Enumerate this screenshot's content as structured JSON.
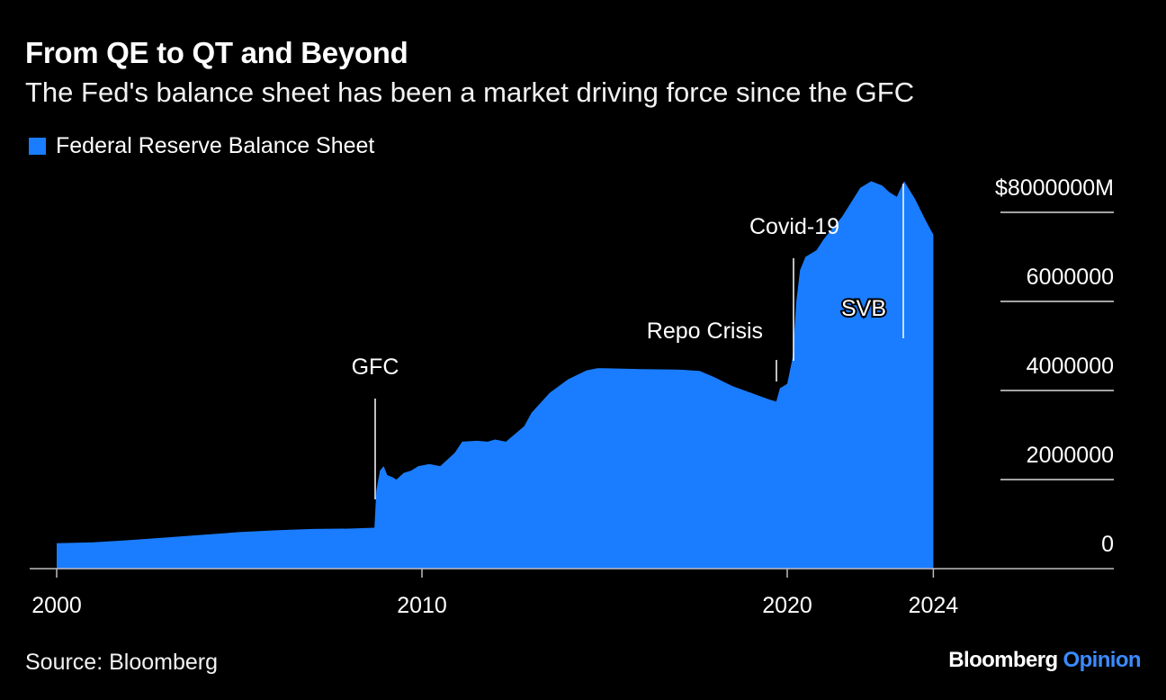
{
  "header": {
    "title": "From QE to QT and Beyond",
    "subtitle": "The Fed's balance sheet has been a market driving force since the GFC"
  },
  "footer": {
    "source": "Source: Bloomberg",
    "brand_main": "Bloomberg",
    "brand_accent": "Opinion"
  },
  "colors": {
    "series": "#1a7dff",
    "background": "#000000",
    "text": "#ffffff",
    "brand_accent": "#3b8bff"
  },
  "chart_data": {
    "type": "area",
    "title": "From QE to QT and Beyond",
    "subtitle": "The Fed's balance sheet has been a market driving force since the GFC",
    "xlabel": "",
    "ylabel": "",
    "xlim": [
      2000,
      2029
    ],
    "ylim": [
      0,
      8000000
    ],
    "x_ticks": [
      2000,
      2010,
      2020,
      2024
    ],
    "y_ticks": [
      {
        "value": 0,
        "label": "0"
      },
      {
        "value": 2000000,
        "label": "2000000"
      },
      {
        "value": 4000000,
        "label": "4000000"
      },
      {
        "value": 6000000,
        "label": "6000000"
      },
      {
        "value": 8000000,
        "label": "$8000000M"
      }
    ],
    "y_axis_side": "right",
    "grid": false,
    "legend": "top-left",
    "series": [
      {
        "name": "Federal Reserve Balance Sheet",
        "x": [
          2000.0,
          2001.0,
          2002.0,
          2003.0,
          2004.0,
          2005.0,
          2006.0,
          2007.0,
          2008.0,
          2008.7,
          2008.75,
          2008.85,
          2008.95,
          2009.05,
          2009.2,
          2009.3,
          2009.5,
          2009.7,
          2009.9,
          2010.2,
          2010.5,
          2010.9,
          2011.1,
          2011.5,
          2011.8,
          2012.0,
          2012.3,
          2012.8,
          2013.0,
          2013.5,
          2014.0,
          2014.5,
          2014.8,
          2015.0,
          2016.0,
          2017.0,
          2017.6,
          2018.0,
          2018.5,
          2019.0,
          2019.5,
          2019.7,
          2019.8,
          2020.0,
          2020.15,
          2020.25,
          2020.35,
          2020.5,
          2020.8,
          2021.0,
          2021.5,
          2022.0,
          2022.3,
          2022.6,
          2022.8,
          2023.0,
          2023.2,
          2023.5,
          2023.8,
          2024.0
        ],
        "values": [
          570000,
          590000,
          640000,
          700000,
          760000,
          820000,
          860000,
          890000,
          900000,
          920000,
          1750000,
          2200000,
          2300000,
          2100000,
          2050000,
          2000000,
          2150000,
          2200000,
          2300000,
          2350000,
          2300000,
          2600000,
          2850000,
          2870000,
          2850000,
          2900000,
          2850000,
          3200000,
          3500000,
          3950000,
          4250000,
          4450000,
          4500000,
          4500000,
          4480000,
          4470000,
          4440000,
          4300000,
          4100000,
          3950000,
          3800000,
          3750000,
          4050000,
          4150000,
          4750000,
          6000000,
          6700000,
          7000000,
          7150000,
          7400000,
          7900000,
          8550000,
          8700000,
          8600000,
          8450000,
          8350000,
          8700000,
          8300000,
          7800000,
          7500000
        ]
      }
    ],
    "annotations": [
      {
        "label": "GFC",
        "x": 2008.7
      },
      {
        "label": "Repo Crisis",
        "x": 2019.7
      },
      {
        "label": "Covid-19",
        "x": 2020.2
      },
      {
        "label": "SVB",
        "x": 2023.2
      }
    ]
  }
}
